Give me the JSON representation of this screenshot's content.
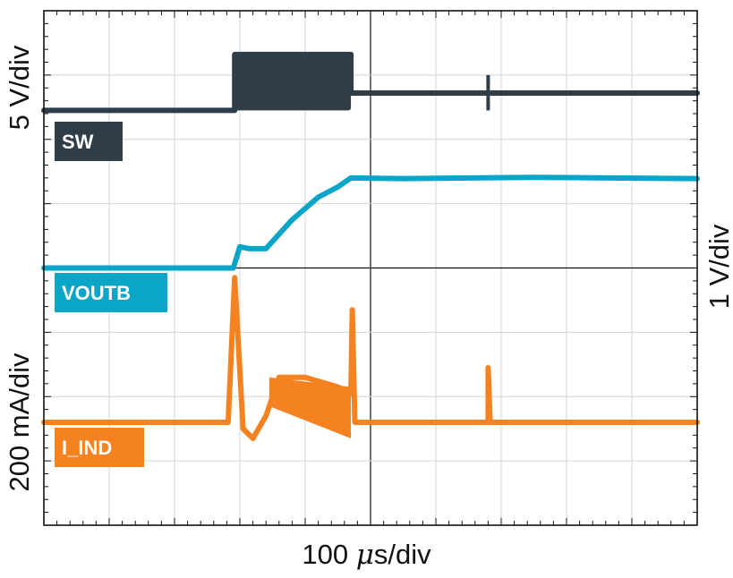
{
  "chart_data": {
    "type": "line",
    "title": "",
    "xlabel_prefix": "100 ",
    "xlabel_mu": "μ",
    "xlabel_suffix": "s/div",
    "ylabel_left_top": "5 V/div",
    "ylabel_left_bottom": "200 mA/div",
    "ylabel_right": "1 V/div",
    "grid": true,
    "xlim": [
      0,
      10
    ],
    "ylim": [
      0,
      8
    ],
    "x_divisions": 10,
    "y_divisions": 8,
    "series": [
      {
        "name": "SW",
        "label": "SW",
        "color": "#2f3d49",
        "points": [
          [
            0,
            6.45
          ],
          [
            2.92,
            6.45
          ],
          [
            2.92,
            7.32
          ],
          [
            4.7,
            7.32
          ],
          [
            4.7,
            6.72
          ],
          [
            6.8,
            6.72
          ],
          [
            10,
            6.72
          ]
        ],
        "burst_start": 2.92,
        "burst_end": 4.7,
        "burst_high": 7.32,
        "burst_low": 6.45,
        "spike_x": 6.8,
        "spike_high": 7.0,
        "spike_low": 6.45
      },
      {
        "name": "VOUTB",
        "label": "VOUTB",
        "color": "#0aa5c7",
        "points": [
          [
            0,
            4.0
          ],
          [
            2.9,
            4.0
          ],
          [
            3.0,
            4.33
          ],
          [
            3.15,
            4.3
          ],
          [
            3.4,
            4.3
          ],
          [
            3.8,
            4.75
          ],
          [
            4.2,
            5.1
          ],
          [
            4.5,
            5.26
          ],
          [
            4.7,
            5.4
          ],
          [
            5.5,
            5.39
          ],
          [
            7.5,
            5.41
          ],
          [
            10,
            5.39
          ]
        ]
      },
      {
        "name": "I_IND",
        "label": "I_IND",
        "color": "#f58220",
        "points": [
          [
            0,
            1.6
          ],
          [
            2.82,
            1.6
          ],
          [
            2.92,
            3.85
          ],
          [
            3.05,
            1.5
          ],
          [
            3.2,
            1.35
          ],
          [
            3.4,
            1.7
          ],
          [
            3.6,
            2.3
          ],
          [
            4.0,
            2.3
          ],
          [
            4.5,
            2.15
          ],
          [
            4.7,
            2.05
          ],
          [
            4.72,
            3.35
          ],
          [
            4.76,
            1.6
          ],
          [
            6.8,
            1.6
          ],
          [
            6.8,
            2.45
          ],
          [
            6.83,
            1.6
          ],
          [
            10,
            1.6
          ]
        ],
        "ripple_start": 3.45,
        "ripple_end": 4.7,
        "ripple_low_start": 1.85,
        "ripple_low_end": 1.35
      }
    ]
  }
}
